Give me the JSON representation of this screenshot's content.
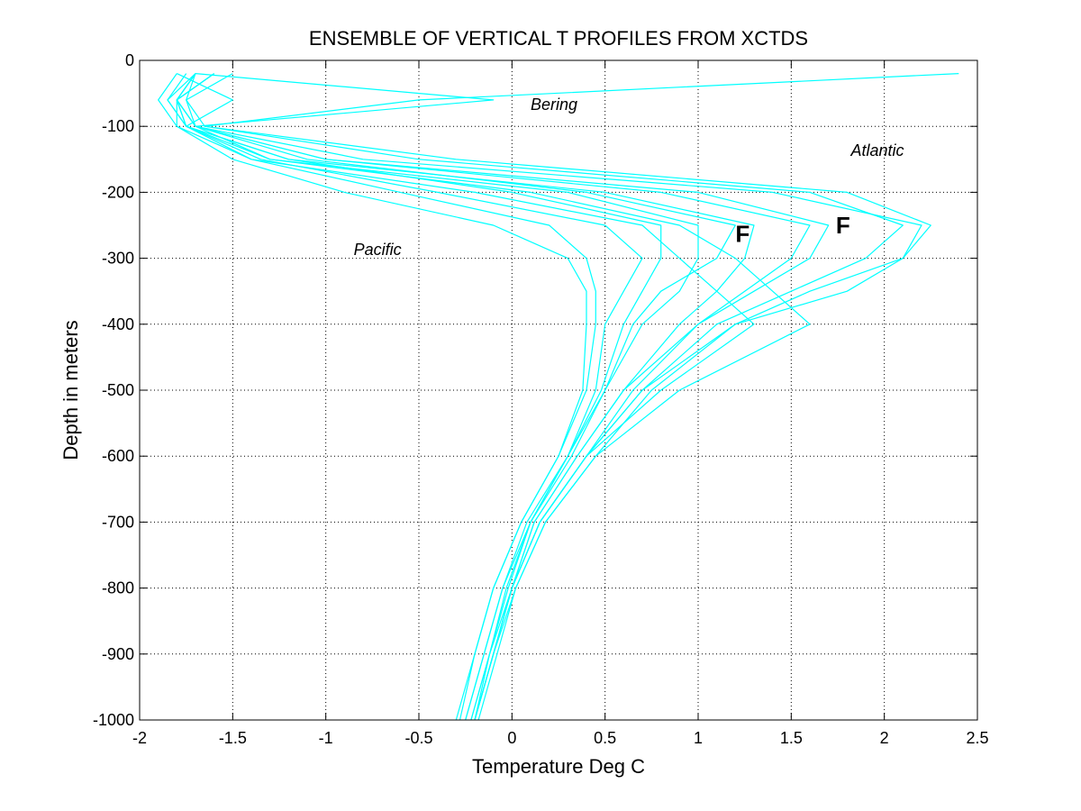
{
  "chart_data": {
    "type": "line",
    "title": "ENSEMBLE OF VERTICAL T PROFILES FROM XCTDS",
    "xlabel": "Temperature Deg C",
    "ylabel": "Depth in meters",
    "xlim": [
      -2,
      2.5
    ],
    "ylim": [
      -1000,
      0
    ],
    "xticks": [
      "-2",
      "-1.5",
      "-1",
      "-0.5",
      "0",
      "0.5",
      "1",
      "1.5",
      "2",
      "2.5"
    ],
    "yticks": [
      "0",
      "-100",
      "-200",
      "-300",
      "-400",
      "-500",
      "-600",
      "-700",
      "-800",
      "-900",
      "-1000"
    ],
    "grid": true,
    "line_color": "#00ffff",
    "depth": [
      -20,
      -60,
      -100,
      -150,
      -200,
      -250,
      -300,
      -350,
      -400,
      -500,
      -600,
      -700,
      -800,
      -900,
      -1000
    ],
    "series": [
      {
        "temperature": [
          -1.7,
          -1.75,
          -1.7,
          -1.3,
          0.3,
          1.0,
          1.0,
          0.9,
          0.7,
          0.5,
          0.3,
          0.1,
          -0.05,
          -0.15,
          -0.25
        ]
      },
      {
        "temperature": [
          -1.6,
          -1.8,
          -1.75,
          -1.2,
          0.5,
          1.3,
          1.25,
          1.1,
          0.9,
          0.6,
          0.35,
          0.12,
          0.0,
          -0.1,
          -0.2
        ]
      },
      {
        "temperature": [
          -1.7,
          -1.8,
          -1.7,
          -1.0,
          1.0,
          1.7,
          1.6,
          1.3,
          1.0,
          0.65,
          0.4,
          0.15,
          0.0,
          -0.1,
          -0.2
        ]
      },
      {
        "temperature": [
          -1.5,
          -1.75,
          -1.65,
          -0.5,
          1.6,
          2.1,
          1.9,
          1.5,
          1.1,
          0.7,
          0.4,
          0.15,
          0.0,
          -0.1,
          -0.2
        ]
      },
      {
        "temperature": [
          -1.6,
          -1.8,
          -1.7,
          -0.8,
          1.4,
          2.2,
          2.1,
          1.8,
          1.2,
          0.7,
          0.4,
          0.15,
          0.0,
          -0.1,
          -0.2
        ]
      },
      {
        "temperature": [
          -1.7,
          -1.85,
          -1.75,
          -1.4,
          -0.6,
          0.2,
          0.4,
          0.45,
          0.45,
          0.4,
          0.25,
          0.05,
          -0.1,
          -0.2,
          -0.3
        ]
      },
      {
        "temperature": [
          -1.6,
          -1.8,
          -1.8,
          -1.5,
          -0.9,
          -0.1,
          0.3,
          0.4,
          0.4,
          0.38,
          0.25,
          0.05,
          -0.1,
          -0.2,
          -0.28
        ]
      },
      {
        "temperature": [
          -1.7,
          -1.8,
          -1.75,
          -1.35,
          -0.4,
          0.5,
          0.7,
          0.6,
          0.5,
          0.45,
          0.3,
          0.08,
          -0.05,
          -0.15,
          -0.25
        ]
      },
      {
        "temperature": [
          -1.8,
          -1.5,
          -1.75,
          -1.2,
          0.0,
          0.8,
          0.8,
          0.7,
          0.6,
          0.48,
          0.3,
          0.1,
          -0.03,
          -0.12,
          -0.22
        ]
      },
      {
        "temperature": [
          -1.7,
          -0.1,
          -1.7,
          -1.1,
          0.4,
          1.2,
          1.1,
          0.8,
          0.65,
          0.5,
          0.32,
          0.1,
          -0.02,
          -0.12,
          -0.2
        ]
      },
      {
        "temperature": [
          2.4,
          -0.5,
          -1.65,
          -0.3,
          1.8,
          2.25,
          2.1,
          1.6,
          1.2,
          0.75,
          0.45,
          0.18,
          0.02,
          -0.08,
          -0.18
        ]
      },
      {
        "temperature": [
          -1.8,
          -1.9,
          -1.8,
          -1.4,
          -0.2,
          0.7,
          0.9,
          1.1,
          1.3,
          0.8,
          0.4,
          0.15,
          0.0,
          -0.12,
          -0.22
        ]
      },
      {
        "temperature": [
          -1.75,
          -1.85,
          -1.75,
          -1.3,
          0.1,
          0.9,
          1.2,
          1.4,
          1.6,
          0.9,
          0.45,
          0.18,
          0.02,
          -0.1,
          -0.2
        ]
      },
      {
        "temperature": [
          -1.7,
          -1.8,
          -1.7,
          -1.0,
          0.8,
          1.6,
          1.5,
          1.25,
          1.0,
          0.6,
          0.35,
          0.12,
          0.0,
          -0.1,
          -0.2
        ]
      }
    ],
    "annotations": [
      {
        "text": "Bering",
        "x": 0.1,
        "y": -75,
        "style": "italic"
      },
      {
        "text": "Atlantic",
        "x": 1.82,
        "y": -145,
        "style": "italic"
      },
      {
        "text": "Pacific",
        "x": -0.85,
        "y": -295,
        "style": "italic"
      },
      {
        "text": "F",
        "x": 1.2,
        "y": -275,
        "style": "bold"
      },
      {
        "text": "F",
        "x": 1.74,
        "y": -262,
        "style": "bold"
      }
    ]
  }
}
